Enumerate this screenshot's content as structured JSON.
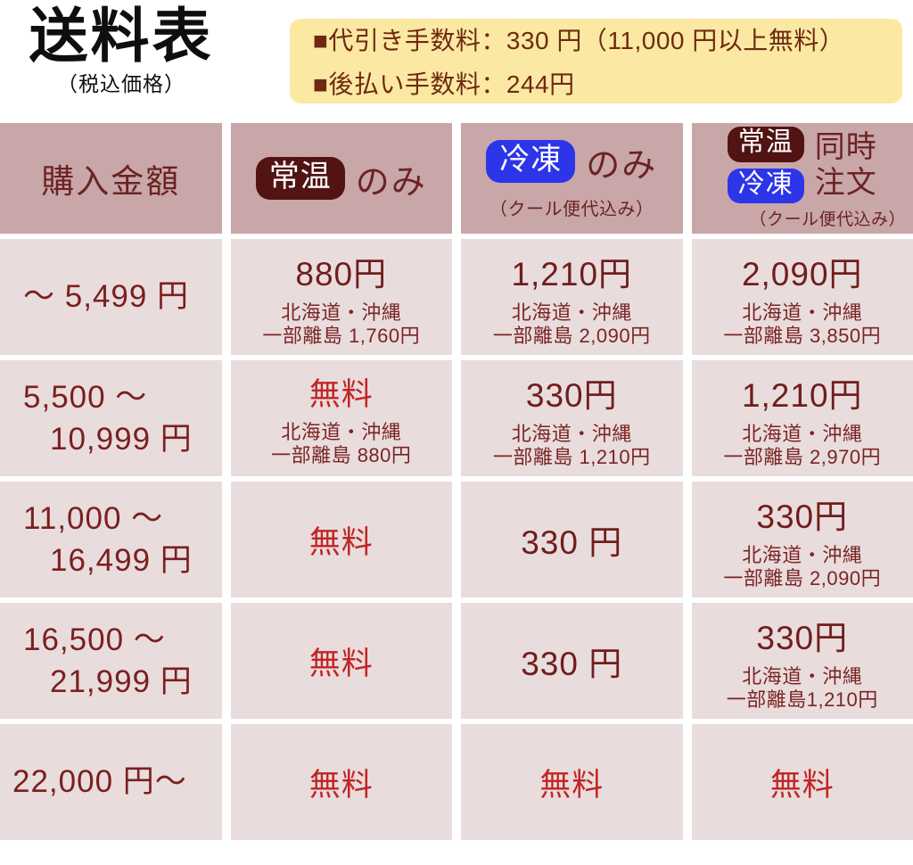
{
  "page": {
    "title": "送料表",
    "subtitle": "（税込価格）"
  },
  "notice": {
    "line1": "■代引き手数料：330 円（11,000 円以上無料）",
    "line2": "■後払い手数料：244円"
  },
  "table": {
    "header": {
      "col1": "購入金額",
      "badge_normal": "常温",
      "badge_frozen": "冷凍",
      "only": "のみ",
      "cool_note": "（クール便代込み）",
      "sim1": "同時",
      "sim2": "注文"
    },
    "rows": [
      {
        "range1": "～ 5,499 円",
        "cells": [
          {
            "price": "880円",
            "note1": "北海道・沖縄",
            "note2": "一部離島 1,760円"
          },
          {
            "price": "1,210円",
            "note1": "北海道・沖縄",
            "note2": "一部離島 2,090円"
          },
          {
            "price": "2,090円",
            "note1": "北海道・沖縄",
            "note2": "一部離島 3,850円"
          }
        ]
      },
      {
        "range1": "5,500 ～",
        "range2": "10,999 円",
        "cells": [
          {
            "price": "無料",
            "free": true,
            "note1": "北海道・沖縄",
            "note2": "一部離島 880円"
          },
          {
            "price": "330円",
            "note1": "北海道・沖縄",
            "note2": "一部離島 1,210円"
          },
          {
            "price": "1,210円",
            "note1": "北海道・沖縄",
            "note2": "一部離島 2,970円"
          }
        ]
      },
      {
        "range1": "11,000 ～",
        "range2": "16,499 円",
        "cells": [
          {
            "price": "無料",
            "free": true
          },
          {
            "price": "330 円"
          },
          {
            "price": "330円",
            "note1": "北海道・沖縄",
            "note2": "一部離島 2,090円"
          }
        ]
      },
      {
        "range1": "16,500 ～",
        "range2": "21,999 円",
        "cells": [
          {
            "price": "無料",
            "free": true
          },
          {
            "price": "330 円"
          },
          {
            "price": "330円",
            "note1": "北海道・沖縄",
            "note2": "一部離島1,210円"
          }
        ]
      },
      {
        "range1": "22,000 円～",
        "cells": [
          {
            "price": "無料",
            "free": true
          },
          {
            "price": "無料",
            "free": true
          },
          {
            "price": "無料",
            "free": true
          }
        ]
      }
    ]
  },
  "colors": {
    "header_bg": "#c9a7a9",
    "cell_bg": "#e9dcdc",
    "dark_red_text": "#701d1d",
    "free_red_text": "#c22424",
    "badge_normal_bg": "#521313",
    "badge_frozen_bg": "#2c35e8",
    "notice_bg": "#fbe8a2",
    "notice_text": "#6e2a10"
  }
}
